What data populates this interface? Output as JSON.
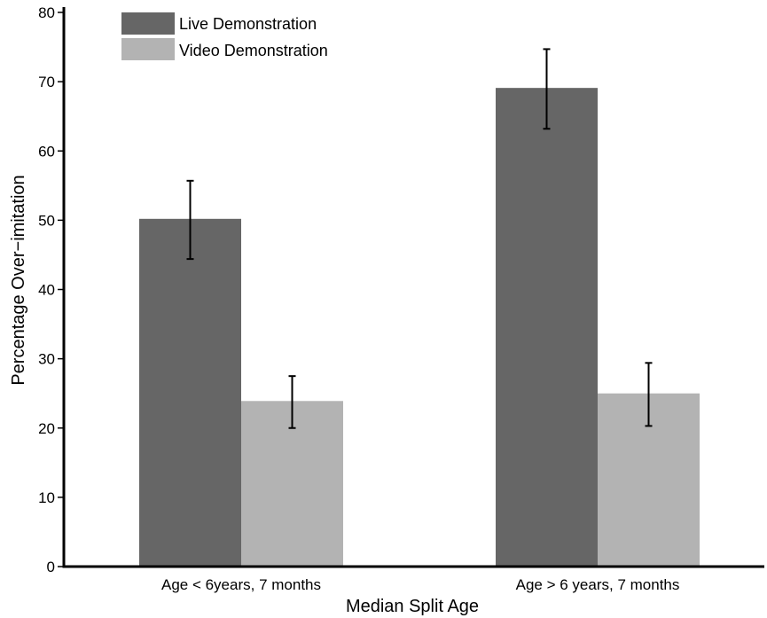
{
  "chart_data": {
    "type": "bar",
    "title": "",
    "xlabel": "Median Split Age",
    "ylabel": "Percentage Over−imitation",
    "ylim": [
      0,
      80
    ],
    "yticks": [
      "0",
      "10",
      "20",
      "30",
      "40",
      "50",
      "60",
      "70",
      "80"
    ],
    "categories": [
      "Age < 6years, 7 months",
      "Age > 6 years, 7 months"
    ],
    "series": [
      {
        "name": "Live Demonstration",
        "color": "#666666",
        "values": [
          50.2,
          69.1
        ],
        "error_low": [
          44.4,
          63.2
        ],
        "error_high": [
          55.7,
          74.7
        ]
      },
      {
        "name": "Video Demonstration",
        "color": "#b3b3b3",
        "values": [
          23.9,
          25.0
        ],
        "error_low": [
          20.0,
          20.3
        ],
        "error_high": [
          27.5,
          29.4
        ]
      }
    ],
    "legend_position": "top-left",
    "grid": false
  }
}
